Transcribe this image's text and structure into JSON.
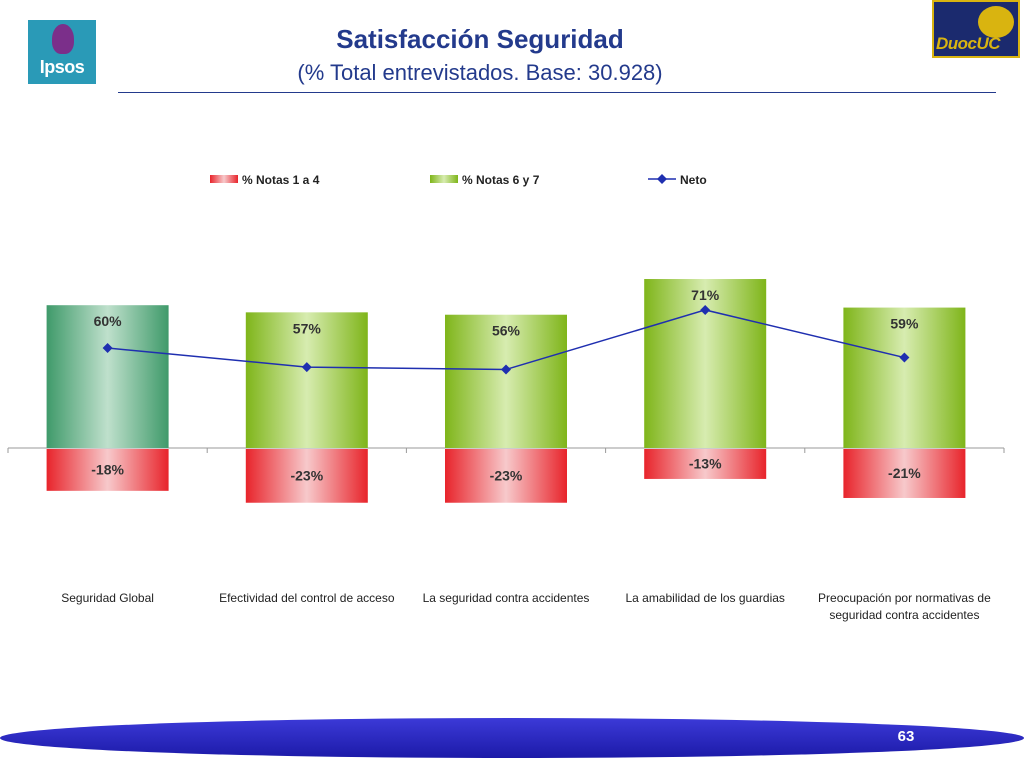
{
  "header": {
    "title": "Satisfacción Seguridad",
    "subtitle": "(% Total entrevistados. Base: 30.928)",
    "logo_left_text": "Ipsos",
    "logo_right_text": "DuocUC"
  },
  "footer": {
    "page_number": "63"
  },
  "colors": {
    "positive_bar": "#8fc21f",
    "positive_bar_highlight": "#3f9a6a",
    "negative_bar": "#e8242b",
    "neto_line": "#1f2fb0",
    "title": "#233a8c"
  },
  "chart_data": {
    "type": "bar",
    "categories": [
      [
        "Seguridad Global"
      ],
      [
        "Efectividad del control de acceso"
      ],
      [
        "La seguridad contra accidentes"
      ],
      [
        "La amabilidad de los guardias"
      ],
      [
        "Preocupación por normativas de",
        "seguridad contra accidentes"
      ]
    ],
    "series": [
      {
        "name": "% Notas 1 a 4",
        "type": "bar",
        "values": [
          -18,
          -23,
          -23,
          -13,
          -21
        ],
        "labels": [
          "-18%",
          "-23%",
          "-23%",
          "-13%",
          "-21%"
        ]
      },
      {
        "name": "% Notas 6 y 7",
        "type": "bar",
        "values": [
          60,
          57,
          56,
          71,
          59
        ],
        "labels": [
          "60%",
          "57%",
          "56%",
          "71%",
          "59%"
        ]
      },
      {
        "name": "Neto",
        "type": "line",
        "values": [
          42,
          34,
          33,
          58,
          38
        ]
      }
    ],
    "ylim": [
      -30,
      80
    ],
    "grid": false,
    "legend_position": "top"
  }
}
